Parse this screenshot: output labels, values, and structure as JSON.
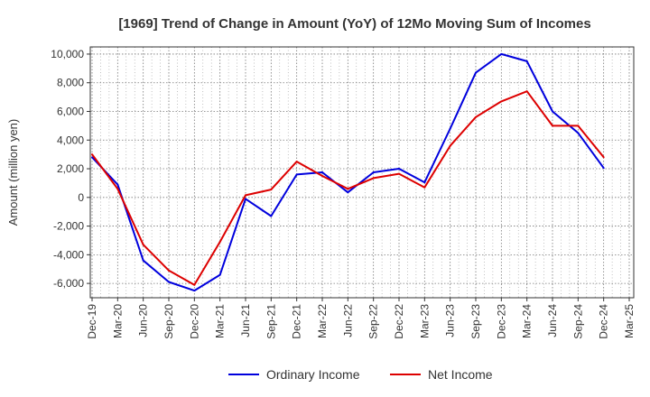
{
  "chart_data": {
    "type": "line",
    "title": "[1969]  Trend of Change in Amount (YoY) of 12Mo Moving Sum of Incomes",
    "ylabel": "Amount (million yen)",
    "xlabel": "",
    "ylim": [
      -7000,
      10500
    ],
    "yticks": [
      -6000,
      -4000,
      -2000,
      0,
      2000,
      4000,
      6000,
      8000,
      10000
    ],
    "ytick_labels": [
      "-6,000",
      "-4,000",
      "-2,000",
      "0",
      "2,000",
      "4,000",
      "6,000",
      "8,000",
      "10,000"
    ],
    "categories": [
      "Dec-19",
      "Mar-20",
      "Jun-20",
      "Sep-20",
      "Dec-20",
      "Mar-21",
      "Jun-21",
      "Sep-21",
      "Dec-21",
      "Mar-22",
      "Jun-22",
      "Sep-22",
      "Dec-22",
      "Mar-23",
      "Jun-23",
      "Sep-23",
      "Dec-23",
      "Mar-24",
      "Jun-24",
      "Sep-24",
      "Dec-24",
      "Mar-25"
    ],
    "grid": true,
    "legend_position": "bottom",
    "series": [
      {
        "name": "Ordinary Income",
        "color": "#0000dd",
        "values": [
          2800,
          900,
          -4400,
          -5900,
          -6500,
          -5400,
          -100,
          -1300,
          1600,
          1750,
          350,
          1750,
          2000,
          1050,
          4800,
          8700,
          10000,
          9500,
          6000,
          4500,
          2050,
          null
        ]
      },
      {
        "name": "Net Income",
        "color": "#dd0000",
        "values": [
          3000,
          600,
          -3300,
          -5100,
          -6100,
          -3100,
          150,
          550,
          2500,
          1500,
          600,
          1350,
          1650,
          700,
          3600,
          5600,
          6700,
          7400,
          5000,
          5000,
          2800,
          null
        ]
      }
    ]
  }
}
